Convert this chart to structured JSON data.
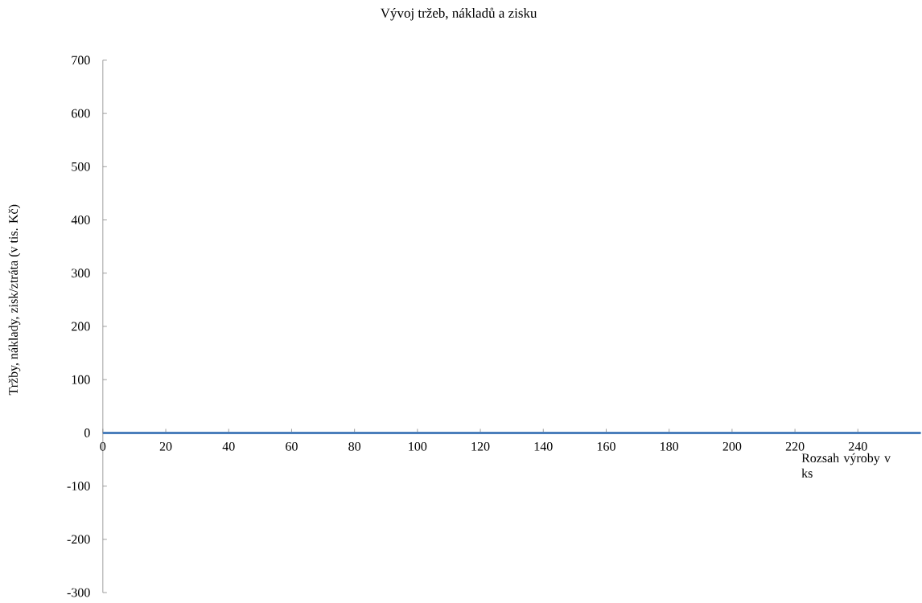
{
  "chart_data": {
    "type": "line",
    "title": "Vývoj tržeb, nákladů a zisku",
    "xlabel": "Rozsah výroby v ks",
    "ylabel": "Tržby, náklady, zisk/ztráta (v tis. Kč)",
    "x": [
      0,
      260
    ],
    "values": [
      0,
      0
    ],
    "color": "#4a7ebb",
    "xlim": [
      0,
      260
    ],
    "ylim": [
      -300,
      700
    ],
    "xticks": [
      0,
      20,
      40,
      60,
      80,
      100,
      120,
      140,
      160,
      180,
      200,
      220,
      240
    ],
    "yticks": [
      -300,
      -200,
      -100,
      0,
      100,
      200,
      300,
      400,
      500,
      600,
      700
    ]
  }
}
